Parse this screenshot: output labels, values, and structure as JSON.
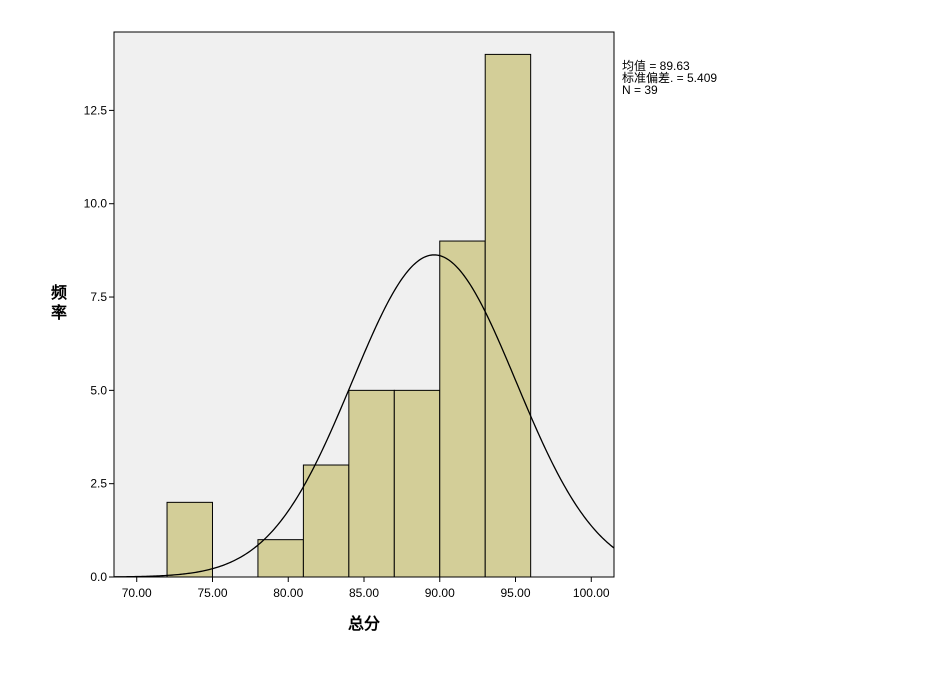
{
  "chart_data": {
    "type": "bar",
    "subtype": "histogram",
    "xlabel": "总分",
    "ylabel": "频率",
    "bins": [
      {
        "x0": 72,
        "x1": 75,
        "count": 2
      },
      {
        "x0": 75,
        "x1": 78,
        "count": 0
      },
      {
        "x0": 78,
        "x1": 81,
        "count": 1
      },
      {
        "x0": 81,
        "x1": 84,
        "count": 3
      },
      {
        "x0": 84,
        "x1": 87,
        "count": 5
      },
      {
        "x0": 87,
        "x1": 90,
        "count": 5
      },
      {
        "x0": 90,
        "x1": 93,
        "count": 9
      },
      {
        "x0": 93,
        "x1": 96,
        "count": 14
      }
    ],
    "xlim": [
      68.5,
      101.5
    ],
    "ylim": [
      0,
      14.6
    ],
    "x_ticks": [
      "70.00",
      "75.00",
      "80.00",
      "85.00",
      "90.00",
      "95.00",
      "100.00"
    ],
    "x_tick_values": [
      70,
      75,
      80,
      85,
      90,
      95,
      100
    ],
    "y_ticks": [
      "0.0",
      "2.5",
      "5.0",
      "7.5",
      "10.0",
      "12.5"
    ],
    "y_tick_values": [
      0,
      2.5,
      5,
      7.5,
      10,
      12.5
    ],
    "normal_curve": {
      "mean": 89.63,
      "sd": 5.409,
      "n": 39,
      "bin_width": 3
    },
    "grid": false,
    "colors": {
      "bar_fill": "#d3ce98",
      "bar_stroke": "#000000",
      "plot_background": "#f0f0f0",
      "curve": "#000000"
    }
  },
  "stats": {
    "mean_label": "均值 = 89.63",
    "sd_label": "标准偏差. = 5.409",
    "n_label": "N = 39"
  }
}
